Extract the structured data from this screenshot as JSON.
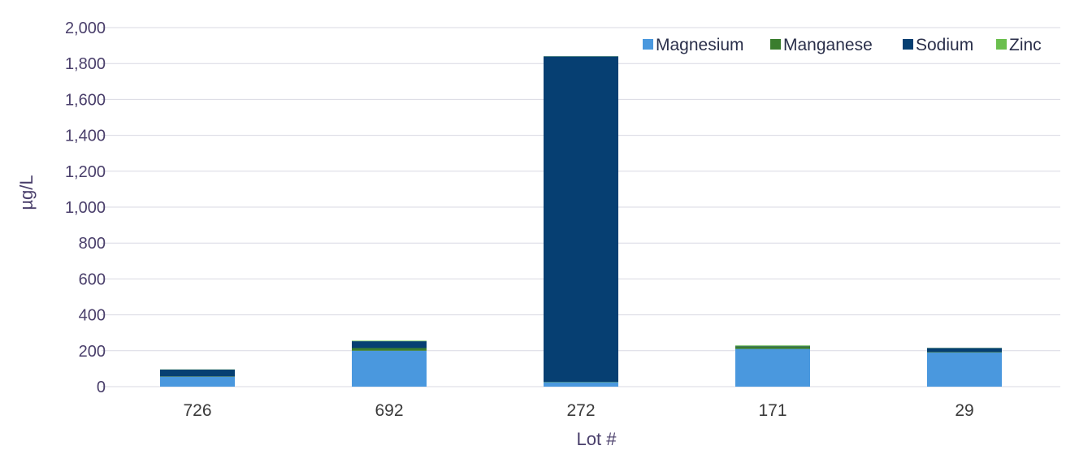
{
  "chart_data": {
    "type": "bar",
    "stacked": true,
    "xlabel": "Lot #",
    "ylabel": "µg/L",
    "categories": [
      "726",
      "692",
      "272",
      "171",
      "29"
    ],
    "ylim": [
      0,
      2000
    ],
    "yticks": [
      0,
      200,
      400,
      600,
      800,
      1000,
      1200,
      1400,
      1600,
      1800,
      2000
    ],
    "ytick_labels": [
      "0",
      "200",
      "400",
      "600",
      "800",
      "1,000",
      "1,200",
      "1,400",
      "1,600",
      "1,800",
      "2,000"
    ],
    "grid": true,
    "legend_position": "top-right",
    "series": [
      {
        "name": "Magnesium",
        "color": "#4a98de",
        "values": [
          55,
          200,
          25,
          210,
          190
        ]
      },
      {
        "name": "Manganese",
        "color": "#3a7d2e",
        "values": [
          2,
          15,
          2,
          15,
          3
        ]
      },
      {
        "name": "Sodium",
        "color": "#063f72",
        "values": [
          38,
          38,
          1813,
          2,
          22
        ]
      },
      {
        "name": "Zinc",
        "color": "#6bbf4e",
        "values": [
          1,
          3,
          1,
          3,
          1
        ]
      }
    ]
  }
}
